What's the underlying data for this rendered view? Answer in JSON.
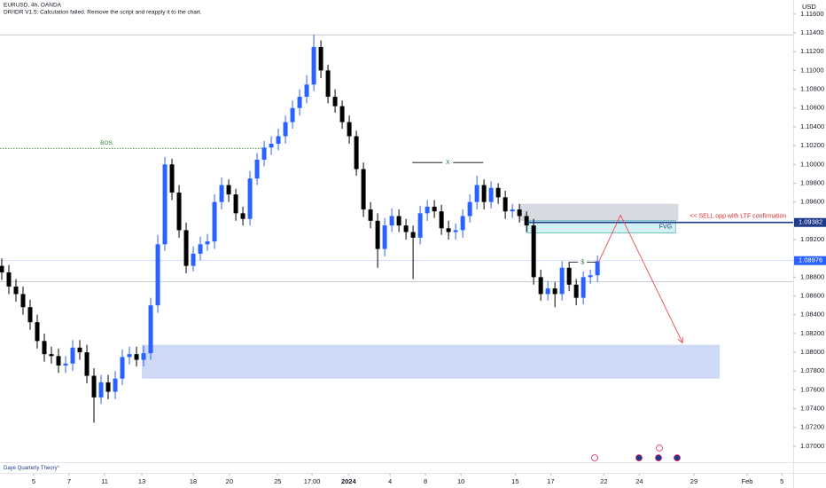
{
  "chart_data": {
    "type": "candlestick",
    "title": "EURUSD, 4h, OANDA",
    "subtitle": "DR/IDR V1.5: Calculation failed. Remove the script and reapply it to the chart.",
    "y_axis_label": "USD",
    "footer": "Daye Quarterly Theory°",
    "up_color": "#2962ff",
    "down_color": "#000000",
    "xlim": [
      -0.25,
      111.6
    ],
    "xticks": [
      {
        "value": 4.5,
        "label": "5"
      },
      {
        "value": 9.5,
        "label": "7"
      },
      {
        "value": 14.5,
        "label": "11"
      },
      {
        "value": 19.75,
        "label": "13"
      },
      {
        "value": 27,
        "label": "18"
      },
      {
        "value": 32.1,
        "label": "20"
      },
      {
        "value": 38.9,
        "label": "25"
      },
      {
        "value": 43.75,
        "label": "17:00"
      },
      {
        "value": 48.9,
        "label": "2024"
      },
      {
        "value": 54.75,
        "label": "4"
      },
      {
        "value": 59.75,
        "label": "8"
      },
      {
        "value": 64.75,
        "label": "10"
      },
      {
        "value": 72.4,
        "label": "15"
      },
      {
        "value": 77.4,
        "label": "17"
      },
      {
        "value": 84.9,
        "label": "22"
      },
      {
        "value": 89.9,
        "label": "24"
      },
      {
        "value": 97.6,
        "label": "29"
      },
      {
        "value": 105.1,
        "label": "Feb"
      },
      {
        "value": 110,
        "label": "5"
      }
    ],
    "ylim": [
      1.0682,
      1.1175
    ],
    "yticks": [
      {
        "value": 1.07,
        "label": "1.07000"
      },
      {
        "value": 1.072,
        "label": "1.07200"
      },
      {
        "value": 1.074,
        "label": "1.07400"
      },
      {
        "value": 1.076,
        "label": "1.07600"
      },
      {
        "value": 1.078,
        "label": "1.07800"
      },
      {
        "value": 1.08,
        "label": "1.08000"
      },
      {
        "value": 1.082,
        "label": "1.08200"
      },
      {
        "value": 1.084,
        "label": "1.08400"
      },
      {
        "value": 1.086,
        "label": "1.08600"
      },
      {
        "value": 1.088,
        "label": "1.08800"
      },
      {
        "value": 1.092,
        "label": "1.09200"
      },
      {
        "value": 1.096,
        "label": "1.09600"
      },
      {
        "value": 1.098,
        "label": "1.09800"
      },
      {
        "value": 1.1,
        "label": "1.10000"
      },
      {
        "value": 1.102,
        "label": "1.10200"
      },
      {
        "value": 1.104,
        "label": "1.10400"
      },
      {
        "value": 1.106,
        "label": "1.10600"
      },
      {
        "value": 1.108,
        "label": "1.10800"
      },
      {
        "value": 1.11,
        "label": "1.11000"
      },
      {
        "value": 1.112,
        "label": "1.11200"
      },
      {
        "value": 1.114,
        "label": "1.11400"
      },
      {
        "value": 1.116,
        "label": "1.11600"
      }
    ],
    "open": [
      1.0892,
      1.0885,
      1.087,
      1.0862,
      1.0848,
      1.0832,
      1.0812,
      1.0798,
      1.0796,
      1.0786,
      1.0788,
      1.0805,
      1.08,
      1.0775,
      1.0752,
      1.0768,
      1.0758,
      1.0772,
      1.0795,
      1.0798,
      1.0792,
      1.0799,
      1.085,
      1.0915,
      1.1,
      1.097,
      1.093,
      1.0892,
      1.0905,
      1.0915,
      1.0918,
      1.096,
      1.0978,
      1.0968,
      1.0948,
      1.0942,
      1.0985,
      1.1005,
      1.1018,
      1.1022,
      1.103,
      1.1045,
      1.106,
      1.1072,
      1.1085,
      1.1125,
      1.11,
      1.1072,
      1.1062,
      1.1045,
      1.103,
      1.0995,
      1.0952,
      1.094,
      1.091,
      1.0935,
      1.0945,
      1.0935,
      1.0928,
      1.0922,
      1.0948,
      1.0955,
      1.095,
      1.0932,
      1.0928,
      1.093,
      1.0945,
      1.096,
      1.0978,
      1.096,
      1.0975,
      1.0965,
      1.095,
      1.0952,
      1.0945,
      1.0935,
      1.088,
      1.0862,
      1.0868,
      1.0862,
      1.089,
      1.0872,
      1.0858,
      1.088,
      1.0882
    ],
    "high": [
      1.09,
      1.0893,
      1.0878,
      1.087,
      1.0856,
      1.084,
      1.082,
      1.0806,
      1.0804,
      1.0796,
      1.0813,
      1.0813,
      1.0808,
      1.0783,
      1.0776,
      1.0776,
      1.078,
      1.0803,
      1.0806,
      1.0806,
      1.0807,
      1.0858,
      1.0925,
      1.1008,
      1.1006,
      1.0978,
      1.0938,
      1.0913,
      1.0923,
      1.0926,
      1.0968,
      1.0986,
      1.0984,
      1.0974,
      1.0955,
      1.0993,
      1.1012,
      1.1025,
      1.103,
      1.1038,
      1.1052,
      1.1068,
      1.108,
      1.1095,
      1.1138,
      1.1132,
      1.1106,
      1.108,
      1.1068,
      1.1052,
      1.1036,
      1.1002,
      1.096,
      1.0948,
      1.0943,
      1.0953,
      1.0952,
      1.0942,
      1.0935,
      1.0956,
      1.0962,
      1.0962,
      1.0957,
      1.094,
      1.0937,
      1.0952,
      1.0968,
      1.0988,
      1.0984,
      1.0982,
      1.098,
      1.0972,
      1.0958,
      1.0958,
      1.095,
      1.0942,
      1.0888,
      1.0876,
      1.0875,
      1.0897,
      1.0896,
      1.0878,
      1.0886,
      1.0888,
      1.0903
    ],
    "low": [
      1.0877,
      1.0862,
      1.0854,
      1.084,
      1.0824,
      1.0804,
      1.079,
      1.0788,
      1.0778,
      1.0778,
      1.078,
      1.0792,
      1.0767,
      1.0725,
      1.0745,
      1.075,
      1.075,
      1.0765,
      1.0787,
      1.0785,
      1.0785,
      1.0792,
      1.0842,
      1.0908,
      1.0962,
      1.0922,
      1.0884,
      1.0886,
      1.0898,
      1.0908,
      1.091,
      1.0952,
      1.096,
      1.094,
      1.0935,
      1.0935,
      1.0978,
      1.0998,
      1.101,
      1.1015,
      1.1022,
      1.1038,
      1.1052,
      1.1065,
      1.1078,
      1.1092,
      1.1065,
      1.1055,
      1.1038,
      1.1022,
      1.0988,
      1.0944,
      1.0932,
      1.089,
      1.0902,
      1.0928,
      1.0928,
      1.092,
      1.0878,
      1.0915,
      1.094,
      1.0943,
      1.0925,
      1.092,
      1.092,
      1.0922,
      1.0938,
      1.0952,
      1.0952,
      1.0953,
      1.0958,
      1.0942,
      1.0943,
      1.0938,
      1.0928,
      1.0872,
      1.0855,
      1.0855,
      1.0848,
      1.0855,
      1.0865,
      1.085,
      1.0851,
      1.0873,
      1.0875
    ],
    "close": [
      1.0885,
      1.087,
      1.0862,
      1.0848,
      1.0832,
      1.0812,
      1.0798,
      1.0796,
      1.0786,
      1.0788,
      1.0805,
      1.08,
      1.0775,
      1.0752,
      1.0768,
      1.0758,
      1.0772,
      1.0795,
      1.0798,
      1.0792,
      1.0799,
      1.085,
      1.0915,
      1.1,
      1.097,
      1.093,
      1.0892,
      1.0905,
      1.0915,
      1.0918,
      1.096,
      1.0978,
      1.0968,
      1.0948,
      1.0942,
      1.0985,
      1.1005,
      1.1018,
      1.1022,
      1.103,
      1.1045,
      1.106,
      1.1072,
      1.1085,
      1.1125,
      1.11,
      1.1072,
      1.1062,
      1.1045,
      1.103,
      1.0995,
      1.0952,
      1.094,
      1.091,
      1.0935,
      1.0945,
      1.0935,
      1.0928,
      1.0922,
      1.0948,
      1.0955,
      1.095,
      1.0932,
      1.0928,
      1.093,
      1.0945,
      1.096,
      1.0978,
      1.096,
      1.0975,
      1.0965,
      1.095,
      1.0952,
      1.0945,
      1.0935,
      1.088,
      1.0862,
      1.0868,
      1.0862,
      1.089,
      1.0872,
      1.0858,
      1.088,
      1.0882,
      1.0897
    ],
    "annotations": {
      "levels": [
        1.1138,
        1.0875
      ],
      "demand_zone": {
        "x": [
          19.75,
          101.25
        ],
        "ylim": [
          1.0772,
          1.0808
        ],
        "color": "#c5d3f3"
      },
      "supply_zone": {
        "x": [
          72.9,
          95.4
        ],
        "ylim": [
          1.094,
          1.0958
        ],
        "color": "#d1d4dc"
      },
      "fvg": {
        "label": "FVG",
        "x": [
          74.1,
          95
        ],
        "ylim": [
          1.0927,
          1.094
        ],
        "color": "#c9eef0"
      },
      "bos": {
        "label": "BOS",
        "x": [
          -0.25,
          36.6
        ],
        "y": 1.1017,
        "color": "#2e7d32"
      },
      "x_range": {
        "label": "X",
        "x": [
          57.9,
          67.9
        ],
        "y": 1.1002,
        "color": "#2e7d32"
      },
      "liquidity": {
        "label": "$",
        "x": [
          80,
          83.75
        ],
        "y": 1.0896,
        "color": "#2e7d32"
      },
      "sell_level": {
        "value": 1.09382,
        "x": 74.1,
        "label": "<< SELL opp with  LTF confirmation",
        "color": "#1e3a8a",
        "label_color": "#d32f2f"
      },
      "last_price": {
        "value": 1.08976,
        "color": "#2962ff"
      },
      "projection": {
        "x": [
          84.1,
          87.25,
          96
        ],
        "y": [
          1.0895,
          1.0946,
          1.081
        ],
        "color": "#f23645"
      }
    }
  }
}
